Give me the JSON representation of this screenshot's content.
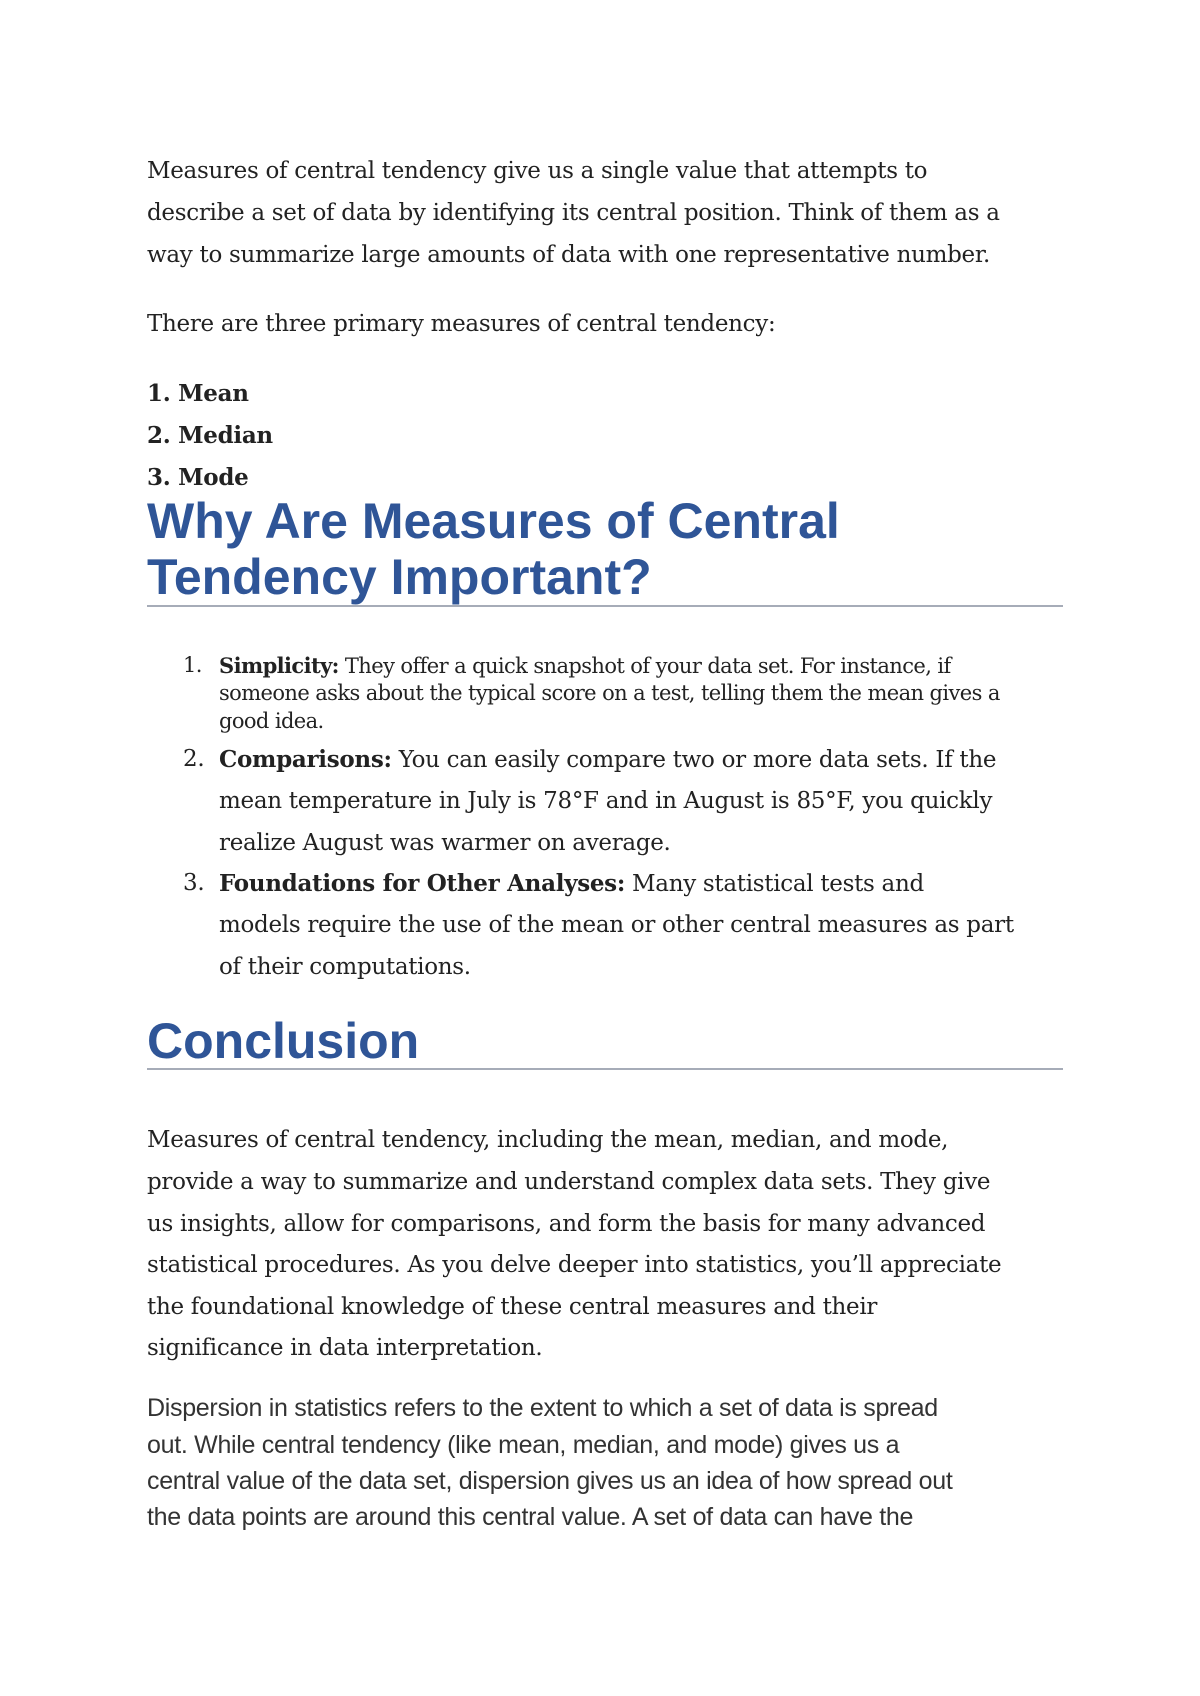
{
  "intro": {
    "lines": [
      "Measures of central tendency give us a single value that attempts to",
      "describe a set of data by identifying its central position. Think of them as a",
      "way to summarize large amounts of data with one representative number."
    ],
    "three_primary": "There are three primary measures of central tendency:",
    "measures": [
      "1. Mean",
      "2. Median",
      "3. Mode"
    ]
  },
  "why_heading": {
    "line1": "Why Are Measures of Central",
    "line2": "Tendency Important?"
  },
  "importance": [
    {
      "num": "1.",
      "title": "Simplicity:",
      "lines": [
        " They offer a quick snapshot of your data set. For instance, if",
        "someone asks about the typical score on a test, telling them the mean gives a",
        "good idea."
      ]
    },
    {
      "num": "2.",
      "title": "Comparisons:",
      "lines": [
        " You can easily compare two or more data sets. If the",
        "mean temperature in July is 78°F and in August is 85°F, you quickly",
        "realize August was warmer on average."
      ]
    },
    {
      "num": "3.",
      "title": "Foundations for Other Analyses:",
      "lines": [
        " Many statistical tests and",
        "models require the use of the mean or other central measures as part",
        "of their computations."
      ]
    }
  ],
  "conclusion_heading": "Conclusion",
  "conclusion": {
    "lines": [
      "Measures of central tendency, including the mean, median, and mode,",
      "provide a way to summarize and understand complex data sets. They give",
      "us insights, allow for comparisons, and form the basis for many advanced",
      "statistical procedures. As you delve deeper into statistics, you’ll appreciate",
      "the foundational knowledge of these central measures and their",
      "significance in data interpretation."
    ]
  },
  "dispersion": {
    "lines": [
      "Dispersion in statistics refers to the extent to which a set of data is spread",
      "out. While central tendency (like mean, median, and mode) gives us a",
      "central value of the data set, dispersion gives us an idea of how spread out",
      "the data points are around this central value. A set of data can have the"
    ]
  },
  "colors": {
    "heading": "#2f5597",
    "rule": "#a6acb8"
  }
}
